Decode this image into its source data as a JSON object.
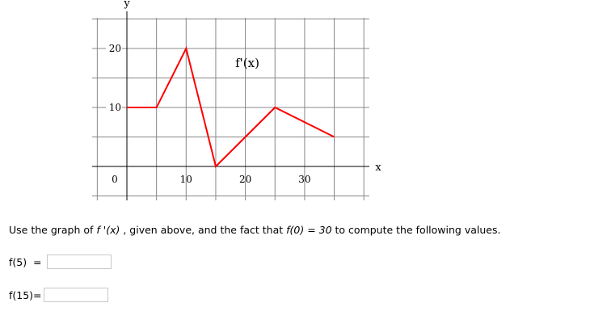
{
  "chart_data": {
    "type": "line",
    "title": "",
    "annotation": "f'(x)",
    "xlabel": "x",
    "ylabel": "y",
    "xlim": [
      -5,
      40
    ],
    "ylim": [
      -5,
      25
    ],
    "grid": true,
    "grid_step": 5,
    "x_ticks": [
      "0",
      "10",
      "20",
      "30"
    ],
    "x_tick_values": [
      0,
      10,
      20,
      30
    ],
    "y_ticks": [
      "10",
      "20"
    ],
    "y_tick_values": [
      10,
      20
    ],
    "series": [
      {
        "color": "#ff0000",
        "x": [
          0,
          5,
          10,
          15,
          25,
          35
        ],
        "y": [
          10,
          10,
          20,
          0,
          10,
          5
        ]
      }
    ]
  },
  "question": {
    "prefix": "Use the graph of ",
    "fprime": "f '(x)",
    "middle": " , given above, and the fact that ",
    "condition": "f(0)  =  30",
    "suffix": "  to compute the following values."
  },
  "answers": [
    {
      "label": "f(5)  =",
      "value": ""
    },
    {
      "label": "f(15)=",
      "value": ""
    }
  ]
}
